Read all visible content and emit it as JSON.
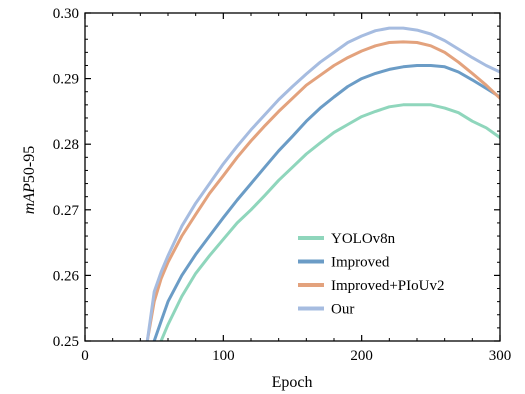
{
  "chart_data": {
    "type": "line",
    "xlabel": "Epoch",
    "ylabel_prefix": "mAP",
    "ylabel_suffix": "50-95",
    "xlim": [
      0,
      300
    ],
    "ylim": [
      0.25,
      0.3
    ],
    "x_ticks": [
      0,
      100,
      200,
      300
    ],
    "x_tick_labels": [
      "0",
      "100",
      "200",
      "300"
    ],
    "x_minor_step": 20,
    "y_ticks": [
      0.25,
      0.26,
      0.27,
      0.28,
      0.29,
      0.3
    ],
    "y_tick_labels": [
      "0.25",
      "0.26",
      "0.27",
      "0.28",
      "0.29",
      "0.30"
    ],
    "y_minor_step": 0.002,
    "grid": false,
    "legend_position": "bottom-right",
    "series": [
      {
        "name": "YOLOv8n",
        "color": "#8fd6bc",
        "points": [
          [
            55,
            0.25
          ],
          [
            60,
            0.2525
          ],
          [
            70,
            0.2568
          ],
          [
            80,
            0.2603
          ],
          [
            90,
            0.263
          ],
          [
            100,
            0.2655
          ],
          [
            110,
            0.268
          ],
          [
            120,
            0.27
          ],
          [
            130,
            0.2722
          ],
          [
            140,
            0.2745
          ],
          [
            150,
            0.2765
          ],
          [
            160,
            0.2785
          ],
          [
            170,
            0.2802
          ],
          [
            180,
            0.2818
          ],
          [
            190,
            0.283
          ],
          [
            200,
            0.2842
          ],
          [
            210,
            0.285
          ],
          [
            220,
            0.2857
          ],
          [
            230,
            0.286
          ],
          [
            240,
            0.286
          ],
          [
            250,
            0.286
          ],
          [
            260,
            0.2855
          ],
          [
            270,
            0.2848
          ],
          [
            280,
            0.2835
          ],
          [
            290,
            0.2825
          ],
          [
            300,
            0.281
          ]
        ]
      },
      {
        "name": "Improved",
        "color": "#6b9cc6",
        "points": [
          [
            50,
            0.25
          ],
          [
            55,
            0.253
          ],
          [
            60,
            0.256
          ],
          [
            70,
            0.26
          ],
          [
            80,
            0.2632
          ],
          [
            90,
            0.266
          ],
          [
            100,
            0.2688
          ],
          [
            110,
            0.2715
          ],
          [
            120,
            0.274
          ],
          [
            130,
            0.2765
          ],
          [
            140,
            0.279
          ],
          [
            150,
            0.2812
          ],
          [
            160,
            0.2835
          ],
          [
            170,
            0.2855
          ],
          [
            180,
            0.2872
          ],
          [
            190,
            0.2888
          ],
          [
            200,
            0.29
          ],
          [
            210,
            0.2908
          ],
          [
            220,
            0.2914
          ],
          [
            230,
            0.2918
          ],
          [
            240,
            0.292
          ],
          [
            250,
            0.292
          ],
          [
            260,
            0.2918
          ],
          [
            270,
            0.291
          ],
          [
            280,
            0.2898
          ],
          [
            290,
            0.2885
          ],
          [
            300,
            0.2872
          ]
        ]
      },
      {
        "name": "Improved+PIoUv2",
        "color": "#e3a27d",
        "points": [
          [
            45,
            0.25
          ],
          [
            50,
            0.256
          ],
          [
            55,
            0.2595
          ],
          [
            60,
            0.262
          ],
          [
            70,
            0.266
          ],
          [
            80,
            0.2693
          ],
          [
            90,
            0.2725
          ],
          [
            100,
            0.2752
          ],
          [
            110,
            0.278
          ],
          [
            120,
            0.2805
          ],
          [
            130,
            0.2828
          ],
          [
            140,
            0.285
          ],
          [
            150,
            0.287
          ],
          [
            160,
            0.289
          ],
          [
            170,
            0.2905
          ],
          [
            180,
            0.292
          ],
          [
            190,
            0.2932
          ],
          [
            200,
            0.2942
          ],
          [
            210,
            0.295
          ],
          [
            220,
            0.2955
          ],
          [
            230,
            0.2956
          ],
          [
            240,
            0.2955
          ],
          [
            250,
            0.295
          ],
          [
            260,
            0.294
          ],
          [
            270,
            0.2925
          ],
          [
            280,
            0.2908
          ],
          [
            290,
            0.289
          ],
          [
            300,
            0.287
          ]
        ]
      },
      {
        "name": "Our",
        "color": "#a6bce0",
        "points": [
          [
            45,
            0.25
          ],
          [
            50,
            0.2575
          ],
          [
            55,
            0.2605
          ],
          [
            60,
            0.263
          ],
          [
            70,
            0.2675
          ],
          [
            80,
            0.271
          ],
          [
            90,
            0.274
          ],
          [
            100,
            0.277
          ],
          [
            110,
            0.2797
          ],
          [
            120,
            0.2822
          ],
          [
            130,
            0.2845
          ],
          [
            140,
            0.2868
          ],
          [
            150,
            0.2888
          ],
          [
            160,
            0.2907
          ],
          [
            170,
            0.2925
          ],
          [
            180,
            0.294
          ],
          [
            190,
            0.2955
          ],
          [
            200,
            0.2965
          ],
          [
            210,
            0.2973
          ],
          [
            220,
            0.2977
          ],
          [
            230,
            0.2977
          ],
          [
            240,
            0.2974
          ],
          [
            250,
            0.2968
          ],
          [
            260,
            0.2958
          ],
          [
            270,
            0.2945
          ],
          [
            280,
            0.2932
          ],
          [
            290,
            0.292
          ],
          [
            300,
            0.291
          ]
        ]
      }
    ]
  }
}
